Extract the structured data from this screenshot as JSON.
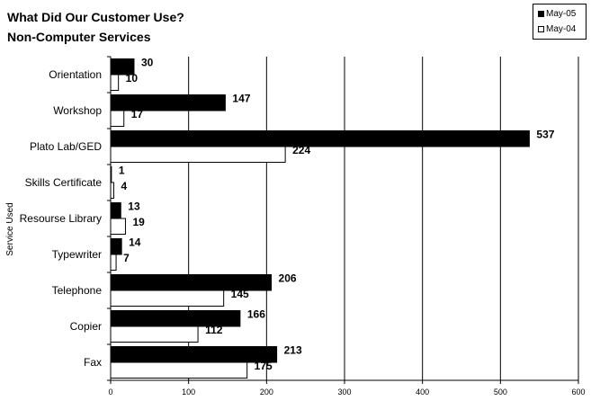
{
  "chart_data": {
    "type": "bar",
    "orientation": "horizontal",
    "title": "What Did Our Customer Use?",
    "subtitle": "Non-Computer Services",
    "xlabel": "",
    "ylabel": "Service Used",
    "categories": [
      "Orientation",
      "Workshop",
      "Plato Lab/GED",
      "Skills Certificate",
      "Resourse Library",
      "Typewriter",
      "Telephone",
      "Copier",
      "Fax"
    ],
    "series": [
      {
        "name": "May-05",
        "color": "#000000",
        "values": [
          30,
          147,
          537,
          1,
          13,
          14,
          206,
          166,
          213
        ]
      },
      {
        "name": "May-04",
        "color": "#ffffff",
        "values": [
          10,
          17,
          224,
          4,
          19,
          7,
          145,
          112,
          175
        ]
      }
    ],
    "xlim": [
      0,
      600
    ],
    "xticks": [
      0,
      100,
      200,
      300,
      400,
      500,
      600
    ],
    "grid": "vertical",
    "legend_position": "top-right"
  }
}
